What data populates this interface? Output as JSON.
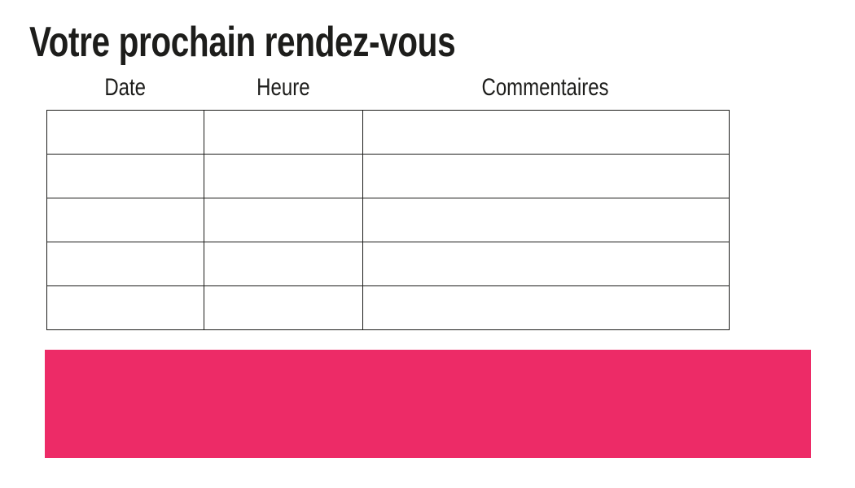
{
  "page": {
    "title": "Votre prochain rendez-vous"
  },
  "appointments_table": {
    "columns": [
      "Date",
      "Heure",
      "Commentaires"
    ],
    "rows": [
      [
        "",
        "",
        ""
      ],
      [
        "",
        "",
        ""
      ],
      [
        "",
        "",
        ""
      ],
      [
        "",
        "",
        ""
      ],
      [
        "",
        "",
        ""
      ]
    ]
  },
  "banner": {
    "text": ""
  },
  "colors": {
    "text": "#1D1D1B",
    "table_border": "#1D1D1B",
    "accent_pink": "#ED2B67"
  }
}
